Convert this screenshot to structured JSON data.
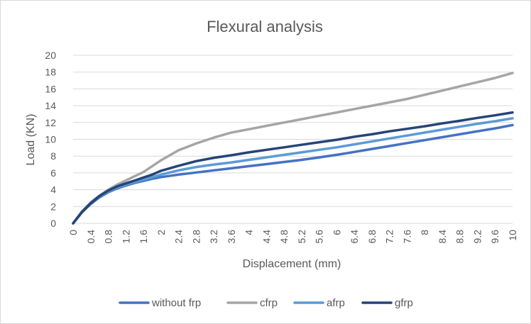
{
  "chart_data": {
    "type": "line",
    "title": "Flexural analysis",
    "xlabel": "Displacement (mm)",
    "ylabel": "Load (KN)",
    "xlim": [
      0,
      10
    ],
    "ylim": [
      0,
      20
    ],
    "x_ticks": [
      "0",
      "0.4",
      "0.8",
      "1.2",
      "1.6",
      "2",
      "2.4",
      "2.8",
      "3.2",
      "3.6",
      "4",
      "4.4",
      "4.8",
      "5.2",
      "5.6",
      "6",
      "6.4",
      "6.8",
      "7.2",
      "7.6",
      "8",
      "8.4",
      "8.8",
      "9.2",
      "9.6",
      "10"
    ],
    "y_ticks": [
      "0",
      "2",
      "4",
      "6",
      "8",
      "10",
      "12",
      "14",
      "16",
      "18",
      "20"
    ],
    "grid": true,
    "legend_position": "bottom",
    "x": [
      0,
      0.2,
      0.4,
      0.6,
      0.8,
      1.0,
      1.2,
      1.4,
      1.6,
      1.8,
      2.0,
      2.4,
      2.8,
      3.2,
      3.6,
      4.0,
      4.4,
      4.8,
      5.2,
      5.6,
      6.0,
      6.4,
      6.8,
      7.2,
      7.6,
      8.0,
      8.4,
      8.8,
      9.2,
      9.6,
      10.0
    ],
    "series": [
      {
        "name": "without frp",
        "color": "#4472C4",
        "values": [
          0,
          1.3,
          2.3,
          3.1,
          3.7,
          4.15,
          4.5,
          4.8,
          5.05,
          5.3,
          5.5,
          5.8,
          6.05,
          6.3,
          6.55,
          6.8,
          7.05,
          7.3,
          7.55,
          7.85,
          8.15,
          8.5,
          8.85,
          9.2,
          9.55,
          9.9,
          10.25,
          10.6,
          10.95,
          11.3,
          11.7
        ]
      },
      {
        "name": "cfrp",
        "color": "#A5A5A5",
        "values": [
          0,
          1.4,
          2.5,
          3.3,
          4.0,
          4.6,
          5.1,
          5.6,
          6.1,
          6.8,
          7.5,
          8.7,
          9.5,
          10.2,
          10.8,
          11.2,
          11.6,
          12.0,
          12.4,
          12.8,
          13.2,
          13.6,
          14.0,
          14.4,
          14.8,
          15.3,
          15.8,
          16.3,
          16.8,
          17.3,
          17.9
        ]
      },
      {
        "name": "afrp",
        "color": "#5B9BD5",
        "values": [
          0,
          1.35,
          2.4,
          3.2,
          3.8,
          4.25,
          4.6,
          4.9,
          5.2,
          5.5,
          5.8,
          6.3,
          6.7,
          7.0,
          7.25,
          7.55,
          7.85,
          8.15,
          8.45,
          8.75,
          9.05,
          9.4,
          9.75,
          10.1,
          10.45,
          10.8,
          11.15,
          11.5,
          11.85,
          12.15,
          12.5
        ]
      },
      {
        "name": "gfrp",
        "color": "#264478",
        "values": [
          0,
          1.35,
          2.4,
          3.25,
          3.9,
          4.4,
          4.75,
          5.1,
          5.45,
          5.8,
          6.25,
          6.85,
          7.4,
          7.8,
          8.1,
          8.45,
          8.75,
          9.05,
          9.35,
          9.65,
          9.95,
          10.3,
          10.6,
          10.95,
          11.25,
          11.55,
          11.9,
          12.2,
          12.55,
          12.85,
          13.2
        ]
      }
    ]
  }
}
